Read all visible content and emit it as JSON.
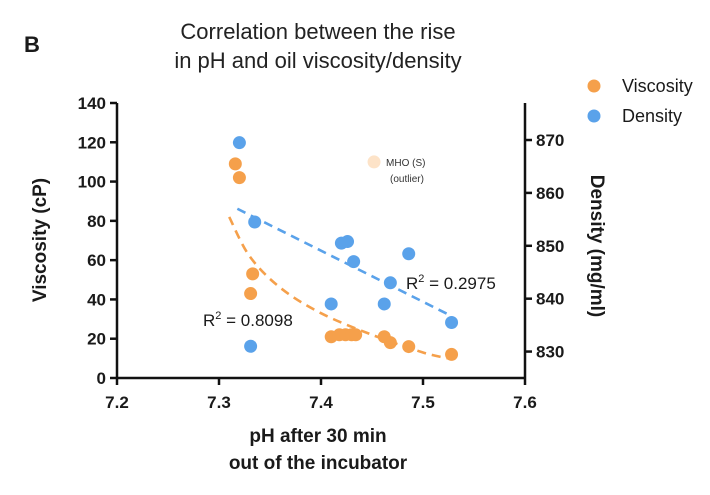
{
  "panel_label": "B",
  "chart_data": {
    "type": "scatter",
    "title_line1": "Correlation between the rise",
    "title_line2": "in pH and oil viscosity/density",
    "xlabel_line1": "pH after 30 min",
    "xlabel_line2": "out of the incubator",
    "ylabel_left": "Viscosity (cP)",
    "ylabel_right": "Density (mg/ml)",
    "xlim": [
      7.2,
      7.6
    ],
    "ylim_left": [
      0,
      140
    ],
    "ylim_right": [
      825,
      877
    ],
    "x_ticks": [
      "7.2",
      "7.3",
      "7.4",
      "7.5",
      "7.6"
    ],
    "y_ticks_left": [
      "0",
      "20",
      "40",
      "60",
      "80",
      "100",
      "120",
      "140"
    ],
    "y_ticks_right": [
      "830",
      "840",
      "850",
      "860",
      "870"
    ],
    "legend_position": "top-right",
    "series": [
      {
        "name": "Viscosity",
        "axis": "left",
        "color": "#f5a04b",
        "points": [
          [
            7.316,
            109
          ],
          [
            7.32,
            102
          ],
          [
            7.333,
            53
          ],
          [
            7.331,
            43
          ],
          [
            7.41,
            21
          ],
          [
            7.418,
            22
          ],
          [
            7.424,
            22
          ],
          [
            7.43,
            22
          ],
          [
            7.434,
            22
          ],
          [
            7.462,
            21
          ],
          [
            7.468,
            18
          ],
          [
            7.486,
            16
          ],
          [
            7.528,
            12
          ]
        ],
        "fit": {
          "type": "curve",
          "label": "R² = 0.8098",
          "r2_prefix": "R",
          "r2_sup": "2",
          "r2_value": " = 0.8098",
          "points": [
            [
              7.31,
              82
            ],
            [
              7.33,
              62
            ],
            [
              7.36,
              46
            ],
            [
              7.4,
              33
            ],
            [
              7.45,
              22
            ],
            [
              7.5,
              13
            ],
            [
              7.525,
              10
            ]
          ]
        }
      },
      {
        "name": "Density",
        "axis": "right",
        "color": "#5aa2ea",
        "points": [
          [
            7.32,
            869.5
          ],
          [
            7.335,
            854.5
          ],
          [
            7.42,
            850.5
          ],
          [
            7.426,
            850.8
          ],
          [
            7.432,
            847
          ],
          [
            7.41,
            839
          ],
          [
            7.462,
            839
          ],
          [
            7.468,
            843
          ],
          [
            7.486,
            848.5
          ],
          [
            7.331,
            831
          ],
          [
            7.528,
            835.5
          ]
        ],
        "fit": {
          "type": "line",
          "label": "R² = 0.2975",
          "r2_prefix": "R",
          "r2_sup": "2",
          "r2_value": " = 0.2975",
          "points": [
            [
              7.318,
              857
            ],
            [
              7.525,
              837
            ]
          ]
        }
      }
    ],
    "annotation": {
      "x": 7.452,
      "y": 110,
      "axis": "left",
      "color": "#fde3c8",
      "line1": "MHO (S)",
      "line2": "(outlier)"
    }
  }
}
